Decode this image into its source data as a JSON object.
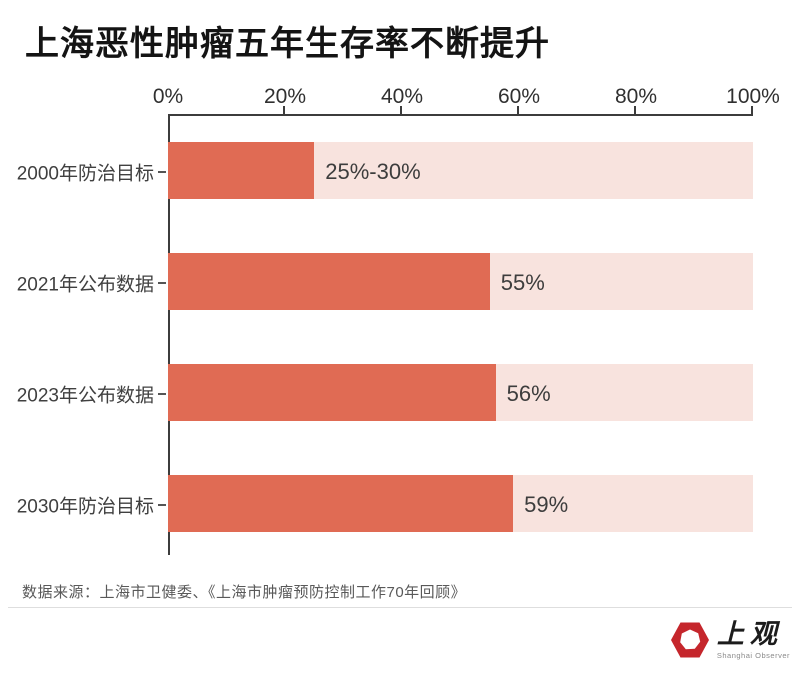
{
  "title": "上海恶性肿瘤五年生存率不断提升",
  "chart_data": {
    "type": "bar",
    "orientation": "horizontal",
    "title": "上海恶性肿瘤五年生存率不断提升",
    "categories": [
      "2000年防治目标",
      "2021年公布数据",
      "2023年公布数据",
      "2030年防治目标"
    ],
    "values": [
      25,
      55,
      56,
      59
    ],
    "value_labels": [
      "25%-30%",
      "55%",
      "56%",
      "59%"
    ],
    "x_ticks": [
      "0%",
      "20%",
      "40%",
      "60%",
      "80%",
      "100%"
    ],
    "xlim": [
      0,
      100
    ],
    "legend": "none",
    "grid": "off",
    "colors": {
      "bar_fill": "#e06b54",
      "bar_track": "#f8e3de",
      "axis": "#3c3c3c"
    }
  },
  "source": {
    "text": "数据来源：上海市卫健委、《上海市肿瘤预防控制工作70年回顾》"
  },
  "logo": {
    "cn": "上观",
    "en": "Shanghai Observer",
    "color": "#c5262c"
  }
}
